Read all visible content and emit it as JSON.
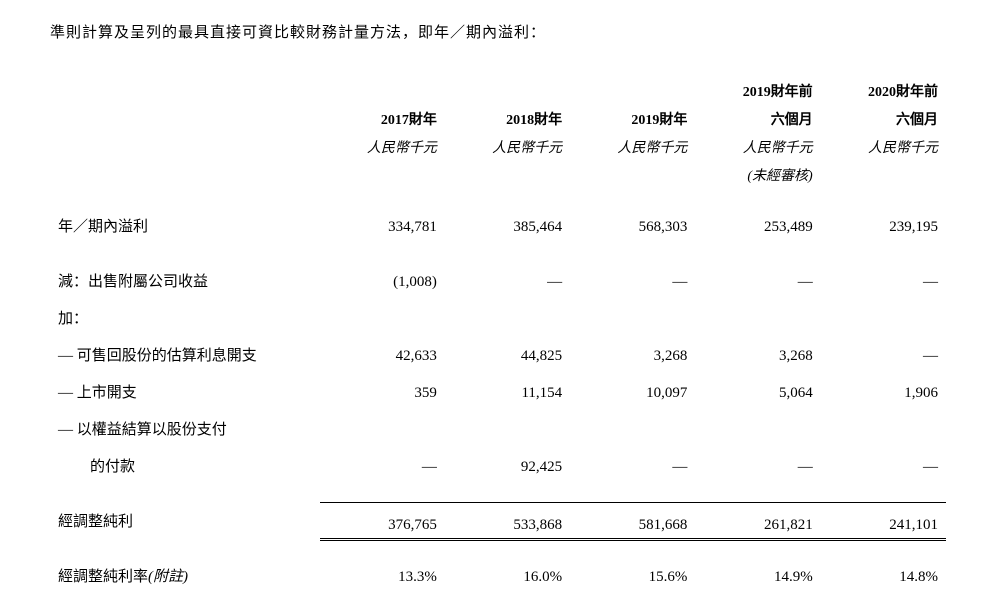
{
  "intro_text": "準則計算及呈列的最具直接可資比較財務計量方法，即年／期內溢利：",
  "table": {
    "headers": {
      "col1": "2017財年",
      "col2": "2018財年",
      "col3": "2019財年",
      "col4_line1": "2019財年前",
      "col4_line2": "六個月",
      "col5_line1": "2020財年前",
      "col5_line2": "六個月",
      "unit": "人民幣千元",
      "unaudited": "(未經審核)"
    },
    "rows": {
      "profit_period": {
        "label": "年／期內溢利",
        "c1": "334,781",
        "c2": "385,464",
        "c3": "568,303",
        "c4": "253,489",
        "c5": "239,195"
      },
      "less_label": "減：出售附屬公司收益",
      "less_values": {
        "c1": "(1,008)",
        "c2": "—",
        "c3": "—",
        "c4": "—",
        "c5": "—"
      },
      "add_label": "加：",
      "redeemable": {
        "label": "— 可售回股份的估算利息開支",
        "c1": "42,633",
        "c2": "44,825",
        "c3": "3,268",
        "c4": "3,268",
        "c5": "—"
      },
      "listing": {
        "label": "— 上市開支",
        "c1": "359",
        "c2": "11,154",
        "c3": "10,097",
        "c4": "5,064",
        "c5": "1,906"
      },
      "equity_line1": "— 以權益結算以股份支付",
      "equity_line2": "的付款",
      "equity_values": {
        "c1": "—",
        "c2": "92,425",
        "c3": "—",
        "c4": "—",
        "c5": "—"
      },
      "adjusted_profit": {
        "label": "經調整純利",
        "c1": "376,765",
        "c2": "533,868",
        "c3": "581,668",
        "c4": "261,821",
        "c5": "241,101"
      },
      "adjusted_margin": {
        "label_main": "經調整純利率",
        "label_note": "(附註)",
        "c1": "13.3%",
        "c2": "16.0%",
        "c3": "15.6%",
        "c4": "14.9%",
        "c5": "14.8%"
      }
    }
  }
}
